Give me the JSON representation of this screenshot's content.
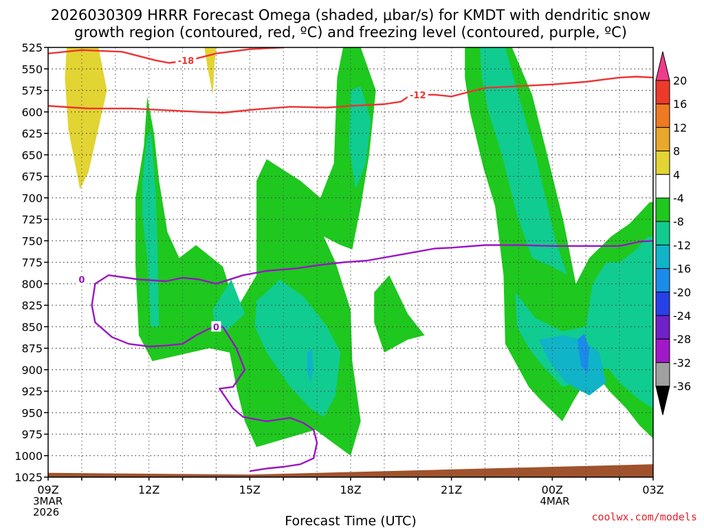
{
  "chart_data": {
    "type": "heatmap",
    "title_line1": "2026030309 HRRR Forecast Omega (shaded, μbar/s) for KMDT with dendritic snow",
    "title_line2": "growth region (contoured, red, ºC) and freezing level (contoured, purple, ºC)",
    "xlabel": "Forecast Time (UTC)",
    "credit": "coolwx.com/models",
    "x_range_hours": [
      0,
      18
    ],
    "x_ticks": [
      {
        "h": 0,
        "label": "09Z",
        "sub1": "3MAR",
        "sub2": "2026"
      },
      {
        "h": 3,
        "label": "12Z",
        "sub1": "",
        "sub2": ""
      },
      {
        "h": 6,
        "label": "15Z",
        "sub1": "",
        "sub2": ""
      },
      {
        "h": 9,
        "label": "18Z",
        "sub1": "",
        "sub2": ""
      },
      {
        "h": 12,
        "label": "21Z",
        "sub1": "",
        "sub2": ""
      },
      {
        "h": 15,
        "label": "00Z",
        "sub1": "4MAR",
        "sub2": ""
      },
      {
        "h": 18,
        "label": "03Z",
        "sub1": "",
        "sub2": ""
      }
    ],
    "y_levels": [
      525,
      550,
      575,
      600,
      625,
      650,
      675,
      700,
      725,
      750,
      775,
      800,
      825,
      850,
      875,
      900,
      925,
      950,
      975,
      1000,
      1025
    ],
    "y_range": [
      525,
      1025
    ],
    "colorbar": {
      "labels": [
        20,
        16,
        12,
        8,
        4,
        -4,
        -8,
        -12,
        -16,
        -20,
        -24,
        -28,
        -32,
        -36
      ],
      "colors": [
        "#f03c8c",
        "#ee3a2a",
        "#ee7a22",
        "#e8a82c",
        "#e2d432",
        "#ffffff",
        "#1ec81e",
        "#10cc90",
        "#10b4c8",
        "#1a8cec",
        "#2840e8",
        "#7020c8",
        "#a018c8",
        "#a0a0a0",
        "#000000"
      ]
    },
    "omega_regions": [
      {
        "color": "#e2d432",
        "points": [
          [
            0.55,
            525
          ],
          [
            1.5,
            525
          ],
          [
            1.75,
            575
          ],
          [
            1.2,
            670
          ],
          [
            0.95,
            690
          ],
          [
            0.6,
            620
          ],
          [
            0.5,
            560
          ]
        ]
      },
      {
        "color": "#e2d432",
        "points": [
          [
            4.65,
            525
          ],
          [
            5.0,
            525
          ],
          [
            4.95,
            545
          ],
          [
            4.9,
            580
          ],
          [
            4.75,
            550
          ]
        ]
      },
      {
        "color": "#1ec81e",
        "points": [
          [
            2.6,
            700
          ],
          [
            2.85,
            640
          ],
          [
            2.95,
            582
          ],
          [
            3.15,
            625
          ],
          [
            3.3,
            680
          ],
          [
            3.55,
            740
          ],
          [
            3.9,
            770
          ],
          [
            4.4,
            755
          ],
          [
            5.2,
            780
          ],
          [
            5.6,
            830
          ],
          [
            6.2,
            790
          ],
          [
            6.2,
            680
          ],
          [
            6.5,
            655
          ],
          [
            6.9,
            665
          ],
          [
            7.5,
            680
          ],
          [
            8.1,
            700
          ],
          [
            8.5,
            660
          ],
          [
            8.6,
            560
          ],
          [
            8.8,
            520
          ],
          [
            9.3,
            525
          ],
          [
            9.75,
            575
          ],
          [
            9.55,
            650
          ],
          [
            9.3,
            710
          ],
          [
            9.05,
            760
          ],
          [
            8.7,
            755
          ],
          [
            8.2,
            745
          ],
          [
            8.55,
            775
          ],
          [
            9.0,
            830
          ],
          [
            9.05,
            890
          ],
          [
            9.3,
            960
          ],
          [
            9.0,
            1000
          ],
          [
            7.95,
            970
          ],
          [
            6.2,
            990
          ],
          [
            5.85,
            960
          ],
          [
            5.6,
            920
          ],
          [
            5.4,
            880
          ],
          [
            4.8,
            875
          ],
          [
            3.1,
            890
          ],
          [
            2.7,
            860
          ],
          [
            2.6,
            780
          ]
        ]
      },
      {
        "color": "#1ec81e",
        "points": [
          [
            9.7,
            810
          ],
          [
            10.15,
            790
          ],
          [
            10.7,
            835
          ],
          [
            11.2,
            860
          ],
          [
            10.7,
            865
          ],
          [
            10.0,
            880
          ],
          [
            9.7,
            845
          ]
        ]
      },
      {
        "color": "#1ec81e",
        "points": [
          [
            12.4,
            525
          ],
          [
            13.8,
            525
          ],
          [
            14.4,
            580
          ],
          [
            14.85,
            650
          ],
          [
            15.35,
            730
          ],
          [
            15.7,
            800
          ],
          [
            16.1,
            770
          ],
          [
            16.75,
            745
          ],
          [
            17.3,
            730
          ],
          [
            17.9,
            705
          ],
          [
            18.0,
            705
          ],
          [
            18.0,
            980
          ],
          [
            17.6,
            965
          ],
          [
            17.2,
            945
          ],
          [
            16.7,
            925
          ],
          [
            16.2,
            900
          ],
          [
            15.65,
            935
          ],
          [
            15.3,
            960
          ],
          [
            14.65,
            935
          ],
          [
            14.3,
            920
          ],
          [
            13.6,
            870
          ],
          [
            13.55,
            790
          ],
          [
            13.3,
            710
          ],
          [
            12.95,
            665
          ],
          [
            12.55,
            600
          ],
          [
            12.4,
            560
          ]
        ]
      },
      {
        "color": "#10cc90",
        "points": [
          [
            2.8,
            680
          ],
          [
            2.95,
            630
          ],
          [
            3.05,
            620
          ],
          [
            3.2,
            690
          ],
          [
            3.25,
            750
          ],
          [
            3.3,
            850
          ],
          [
            3.05,
            850
          ],
          [
            2.95,
            770
          ],
          [
            2.8,
            720
          ]
        ]
      },
      {
        "color": "#10cc90",
        "points": [
          [
            9.0,
            575
          ],
          [
            9.3,
            570
          ],
          [
            9.6,
            610
          ],
          [
            9.45,
            660
          ],
          [
            9.15,
            690
          ],
          [
            8.95,
            640
          ]
        ]
      },
      {
        "color": "#10cc90",
        "points": [
          [
            4.9,
            830
          ],
          [
            5.45,
            795
          ],
          [
            5.85,
            835
          ],
          [
            5.3,
            855
          ],
          [
            4.95,
            850
          ]
        ]
      },
      {
        "color": "#10cc90",
        "points": [
          [
            6.2,
            820
          ],
          [
            6.9,
            795
          ],
          [
            7.6,
            815
          ],
          [
            8.3,
            850
          ],
          [
            8.7,
            880
          ],
          [
            8.55,
            930
          ],
          [
            8.2,
            955
          ],
          [
            7.8,
            945
          ],
          [
            7.2,
            920
          ],
          [
            6.5,
            880
          ],
          [
            6.15,
            850
          ]
        ]
      },
      {
        "color": "#10cc90",
        "points": [
          [
            12.85,
            525
          ],
          [
            13.6,
            525
          ],
          [
            14.1,
            595
          ],
          [
            14.5,
            650
          ],
          [
            14.8,
            700
          ],
          [
            15.1,
            750
          ],
          [
            15.45,
            790
          ],
          [
            15.0,
            780
          ],
          [
            14.4,
            770
          ],
          [
            13.95,
            720
          ],
          [
            13.5,
            650
          ],
          [
            13.1,
            600
          ],
          [
            12.9,
            560
          ]
        ]
      },
      {
        "color": "#10cc90",
        "points": [
          [
            13.9,
            810
          ],
          [
            14.5,
            840
          ],
          [
            15.3,
            855
          ],
          [
            16.0,
            850
          ],
          [
            16.2,
            800
          ],
          [
            16.6,
            775
          ],
          [
            17.0,
            775
          ],
          [
            17.5,
            760
          ],
          [
            17.85,
            745
          ],
          [
            18.0,
            745
          ],
          [
            18.0,
            945
          ],
          [
            17.6,
            935
          ],
          [
            17.0,
            915
          ],
          [
            16.7,
            900
          ],
          [
            16.2,
            895
          ],
          [
            15.7,
            915
          ],
          [
            15.3,
            920
          ],
          [
            14.7,
            895
          ],
          [
            14.3,
            875
          ],
          [
            13.95,
            850
          ]
        ]
      },
      {
        "color": "#10b4c8",
        "points": [
          [
            14.6,
            865
          ],
          [
            15.3,
            860
          ],
          [
            15.9,
            865
          ],
          [
            16.4,
            880
          ],
          [
            16.6,
            915
          ],
          [
            16.1,
            930
          ],
          [
            15.4,
            915
          ],
          [
            14.9,
            890
          ]
        ]
      },
      {
        "color": "#10b4c8",
        "points": [
          [
            7.7,
            880
          ],
          [
            7.85,
            875
          ],
          [
            7.9,
            900
          ],
          [
            7.8,
            915
          ],
          [
            7.7,
            900
          ]
        ]
      },
      {
        "color": "#1a8cec",
        "points": [
          [
            15.75,
            865
          ],
          [
            15.95,
            858
          ],
          [
            16.1,
            875
          ],
          [
            16.05,
            905
          ],
          [
            15.85,
            895
          ]
        ]
      }
    ],
    "ground": {
      "color": "#a0522d",
      "points": [
        [
          0,
          1020
        ],
        [
          6.0,
          1022
        ],
        [
          12,
          1016
        ],
        [
          15,
          1013
        ],
        [
          18,
          1010
        ],
        [
          18,
          1028
        ],
        [
          0,
          1028
        ]
      ]
    },
    "red_contours": [
      {
        "label": "-18",
        "label_at": [
          4.1,
          540
        ],
        "points": [
          [
            0,
            532
          ],
          [
            1.0,
            528
          ],
          [
            2.2,
            530
          ],
          [
            3.2,
            540
          ],
          [
            3.6,
            543
          ],
          [
            4.2,
            540
          ],
          [
            5.0,
            532
          ],
          [
            6.0,
            527
          ],
          [
            7.0,
            525
          ]
        ]
      },
      {
        "label": "-12",
        "label_at": [
          11.0,
          580
        ],
        "points": [
          [
            0,
            593
          ],
          [
            1.2,
            596
          ],
          [
            2.5,
            596
          ],
          [
            3.5,
            598
          ],
          [
            4.5,
            600
          ],
          [
            5.2,
            601
          ],
          [
            6.2,
            597
          ],
          [
            7.2,
            594
          ],
          [
            8.3,
            595
          ],
          [
            9.0,
            593
          ],
          [
            10.0,
            591
          ],
          [
            10.5,
            588
          ],
          [
            10.8,
            580
          ],
          [
            11.5,
            580
          ],
          [
            12.0,
            582
          ],
          [
            12.5,
            577
          ],
          [
            13.0,
            572
          ],
          [
            14.0,
            570
          ],
          [
            15.0,
            568
          ],
          [
            16.0,
            565
          ],
          [
            17.0,
            560
          ],
          [
            17.5,
            559
          ],
          [
            18.0,
            560
          ]
        ]
      }
    ],
    "purple_contours": [
      {
        "label": "0",
        "label_at": [
          1.0,
          795
        ],
        "points": [
          [
            2.7,
            795
          ],
          [
            3.5,
            797
          ],
          [
            4.0,
            793
          ],
          [
            4.5,
            795
          ],
          [
            5.0,
            800
          ],
          [
            5.8,
            790
          ],
          [
            6.5,
            785
          ],
          [
            7.4,
            782
          ],
          [
            8.1,
            778
          ],
          [
            8.8,
            775
          ],
          [
            9.5,
            773
          ],
          [
            10.5,
            766
          ],
          [
            11.5,
            759
          ],
          [
            12.0,
            758
          ],
          [
            13.0,
            755
          ],
          [
            14.0,
            755
          ],
          [
            15.0,
            756
          ],
          [
            16.0,
            756
          ],
          [
            17.0,
            756
          ],
          [
            17.6,
            751
          ],
          [
            18.0,
            750
          ]
        ]
      },
      {
        "label": "0",
        "label_at": [
          5.0,
          850
        ],
        "points": [
          [
            2.7,
            795
          ],
          [
            1.8,
            790
          ],
          [
            1.4,
            800
          ],
          [
            1.3,
            825
          ],
          [
            1.4,
            845
          ],
          [
            1.9,
            862
          ],
          [
            2.4,
            870
          ],
          [
            3.0,
            873
          ],
          [
            3.5,
            872
          ],
          [
            4.0,
            870
          ],
          [
            4.4,
            860
          ],
          [
            4.8,
            852
          ],
          [
            5.2,
            850
          ],
          [
            5.6,
            875
          ],
          [
            5.85,
            900
          ],
          [
            5.5,
            920
          ],
          [
            5.1,
            922
          ],
          [
            5.5,
            945
          ],
          [
            5.8,
            955
          ],
          [
            6.5,
            960
          ],
          [
            7.2,
            956
          ],
          [
            7.6,
            962
          ],
          [
            7.9,
            970
          ],
          [
            8.0,
            985
          ],
          [
            7.9,
            1003
          ],
          [
            7.5,
            1010
          ],
          [
            7.0,
            1013
          ],
          [
            6.5,
            1015
          ],
          [
            6.0,
            1018
          ]
        ]
      }
    ]
  }
}
